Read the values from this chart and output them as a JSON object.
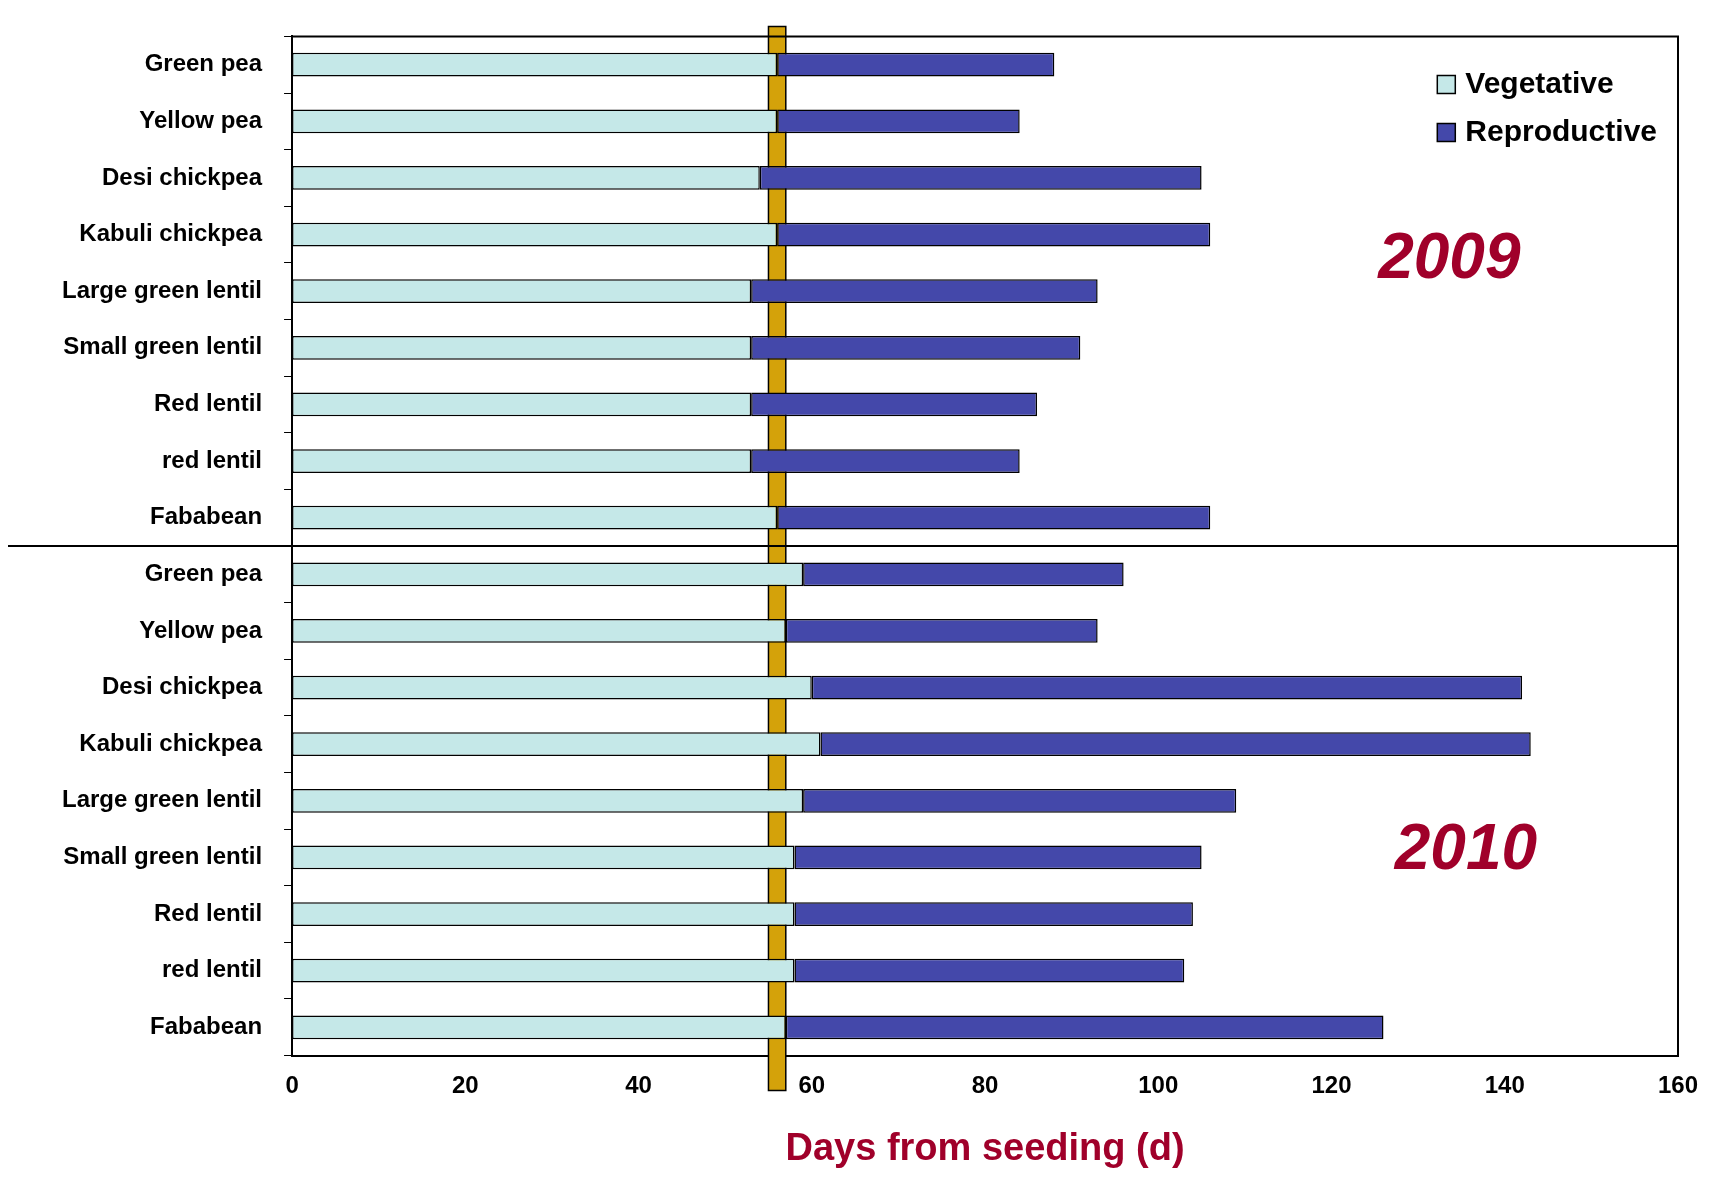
{
  "chart_data": {
    "type": "bar",
    "orientation": "horizontal",
    "stacked": true,
    "xlabel": "Days from seeding (d)",
    "categories": [
      "Green pea",
      "Yellow pea",
      "Desi chickpea",
      "Kabuli chickpea",
      "Large green lentil",
      "Small green lentil",
      "Red lentil",
      "red lentil",
      "Fababean",
      "Green pea",
      "Yellow pea",
      "Desi chickpea",
      "Kabuli chickpea",
      "Large green lentil",
      "Small green lentil",
      "Red lentil",
      "red lentil",
      "Fababean"
    ],
    "series": [
      {
        "name": "Vegetative",
        "color": "#c5e8e8",
        "values": [
          56,
          56,
          54,
          56,
          53,
          53,
          53,
          53,
          56,
          59,
          57,
          60,
          61,
          59,
          58,
          58,
          58,
          57
        ]
      },
      {
        "name": "Reproductive",
        "color": "#4448aa",
        "values": [
          32,
          28,
          51,
          50,
          40,
          38,
          33,
          31,
          50,
          37,
          36,
          82,
          82,
          50,
          47,
          46,
          45,
          69
        ]
      }
    ],
    "xlim": [
      0,
      160
    ],
    "xticks": [
      0,
      20,
      40,
      60,
      80,
      100,
      120,
      140,
      160
    ],
    "bands": [
      {
        "axis": "x",
        "from": 55,
        "to": 57,
        "color": "#d4a20a"
      }
    ],
    "annotations": [
      "2009",
      "2010"
    ],
    "legend": "top right",
    "grid": false
  }
}
